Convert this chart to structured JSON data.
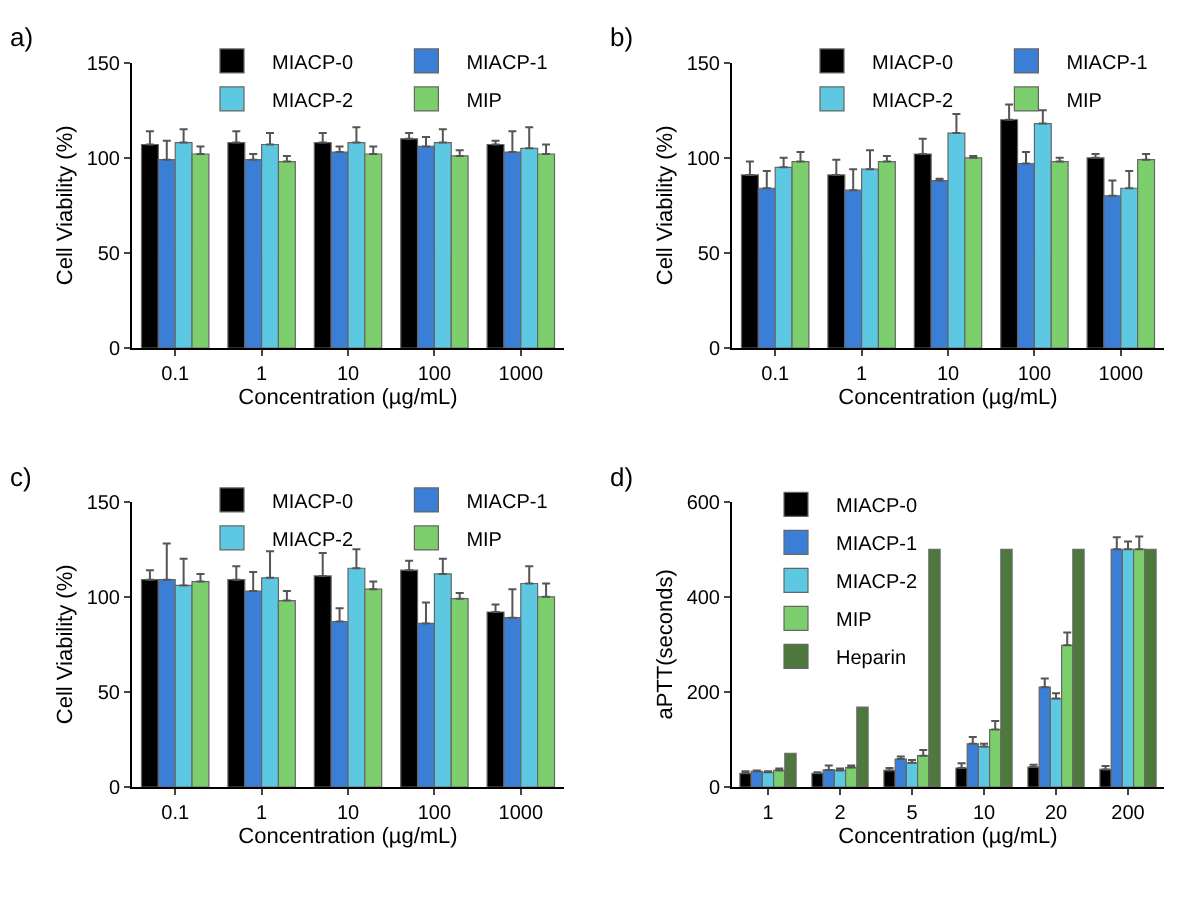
{
  "chart_data": [
    {
      "type": "bar",
      "title": "a)",
      "xlabel": "Concentration (µg/mL)",
      "ylabel": "Cell Viability (%)",
      "categories": [
        "0.1",
        "1",
        "10",
        "100",
        "1000"
      ],
      "ylim": [
        0,
        150
      ],
      "yticks": [
        0,
        50,
        100,
        150
      ],
      "grid": false,
      "legend": "top",
      "series": [
        {
          "name": "MIACP-0",
          "color": "#000000",
          "values": [
            107,
            108,
            108,
            110,
            107
          ],
          "errors": [
            [
              107,
              114
            ],
            [
              108,
              114
            ],
            [
              108,
              113
            ],
            [
              110,
              113
            ],
            [
              107,
              109
            ]
          ]
        },
        {
          "name": "MIACP-1",
          "color": "#3a7fd5",
          "values": [
            99,
            99,
            103,
            106,
            103
          ],
          "errors": [
            [
              99,
              109
            ],
            [
              99,
              102
            ],
            [
              103,
              106
            ],
            [
              106,
              111
            ],
            [
              103,
              114
            ]
          ]
        },
        {
          "name": "MIACP-2",
          "color": "#5cc8e2",
          "values": [
            108,
            107,
            108,
            108,
            105
          ],
          "errors": [
            [
              108,
              115
            ],
            [
              107,
              113
            ],
            [
              108,
              116
            ],
            [
              108,
              115
            ],
            [
              105,
              116
            ]
          ]
        },
        {
          "name": "MIP",
          "color": "#7ccf6c",
          "values": [
            102,
            98,
            102,
            101,
            102
          ],
          "errors": [
            [
              102,
              106
            ],
            [
              98,
              101
            ],
            [
              102,
              106
            ],
            [
              101,
              104
            ],
            [
              102,
              107
            ]
          ]
        }
      ]
    },
    {
      "type": "bar",
      "title": "b)",
      "xlabel": "Concentration (µg/mL)",
      "ylabel": "Cell Viability (%)",
      "categories": [
        "0.1",
        "1",
        "10",
        "100",
        "1000"
      ],
      "ylim": [
        0,
        150
      ],
      "yticks": [
        0,
        50,
        100,
        150
      ],
      "grid": false,
      "legend": "top",
      "series": [
        {
          "name": "MIACP-0",
          "color": "#000000",
          "values": [
            91,
            91,
            102,
            120,
            100
          ],
          "errors": [
            [
              91,
              98
            ],
            [
              91,
              99
            ],
            [
              102,
              110
            ],
            [
              120,
              128
            ],
            [
              100,
              102
            ]
          ]
        },
        {
          "name": "MIACP-1",
          "color": "#3a7fd5",
          "values": [
            84,
            83,
            88,
            97,
            80
          ],
          "errors": [
            [
              84,
              93
            ],
            [
              83,
              94
            ],
            [
              88,
              89
            ],
            [
              97,
              103
            ],
            [
              80,
              88
            ]
          ]
        },
        {
          "name": "MIACP-2",
          "color": "#5cc8e2",
          "values": [
            95,
            94,
            113,
            118,
            84
          ],
          "errors": [
            [
              95,
              100
            ],
            [
              94,
              104
            ],
            [
              113,
              123
            ],
            [
              118,
              125
            ],
            [
              84,
              93
            ]
          ]
        },
        {
          "name": "MIP",
          "color": "#7ccf6c",
          "values": [
            98,
            98,
            100,
            98,
            99
          ],
          "errors": [
            [
              98,
              103
            ],
            [
              98,
              101
            ],
            [
              100,
              101
            ],
            [
              98,
              100
            ],
            [
              99,
              102
            ]
          ]
        }
      ]
    },
    {
      "type": "bar",
      "title": "c)",
      "xlabel": "Concentration (µg/mL)",
      "ylabel": "Cell Viability (%)",
      "categories": [
        "0.1",
        "1",
        "10",
        "100",
        "1000"
      ],
      "ylim": [
        0,
        150
      ],
      "yticks": [
        0,
        50,
        100,
        150
      ],
      "grid": false,
      "legend": "top",
      "series": [
        {
          "name": "MIACP-0",
          "color": "#000000",
          "values": [
            109,
            109,
            111,
            114,
            92
          ],
          "errors": [
            [
              109,
              114
            ],
            [
              109,
              116
            ],
            [
              111,
              123
            ],
            [
              114,
              119
            ],
            [
              92,
              96
            ]
          ]
        },
        {
          "name": "MIACP-1",
          "color": "#3a7fd5",
          "values": [
            109,
            103,
            87,
            86,
            89
          ],
          "errors": [
            [
              109,
              128
            ],
            [
              103,
              113
            ],
            [
              87,
              94
            ],
            [
              86,
              97
            ],
            [
              89,
              104
            ]
          ]
        },
        {
          "name": "MIACP-2",
          "color": "#5cc8e2",
          "values": [
            106,
            110,
            115,
            112,
            107
          ],
          "errors": [
            [
              106,
              120
            ],
            [
              110,
              124
            ],
            [
              115,
              125
            ],
            [
              112,
              120
            ],
            [
              107,
              116
            ]
          ]
        },
        {
          "name": "MIP",
          "color": "#7ccf6c",
          "values": [
            108,
            98,
            104,
            99,
            100
          ],
          "errors": [
            [
              108,
              112
            ],
            [
              98,
              103
            ],
            [
              104,
              108
            ],
            [
              99,
              102
            ],
            [
              100,
              107
            ]
          ]
        }
      ]
    },
    {
      "type": "bar",
      "title": "d)",
      "xlabel": "Concentration (µg/mL)",
      "ylabel": "aPTT(seconds)",
      "categories": [
        "1",
        "2",
        "5",
        "10",
        "20",
        "200"
      ],
      "ylim": [
        0,
        600
      ],
      "yticks": [
        0,
        200,
        400,
        600
      ],
      "legend": "top left",
      "series": [
        {
          "name": "MIACP-0",
          "color": "#000000",
          "values": [
            29,
            29,
            35,
            40,
            42,
            37
          ],
          "errors": [
            [
              29,
              33
            ],
            [
              29,
              31
            ],
            [
              35,
              40
            ],
            [
              40,
              50
            ],
            [
              42,
              47
            ],
            [
              37,
              44
            ]
          ]
        },
        {
          "name": "MIACP-1",
          "color": "#3a7fd5",
          "values": [
            33,
            36,
            59,
            91,
            210,
            500
          ],
          "errors": [
            [
              33,
              35
            ],
            [
              36,
              45
            ],
            [
              59,
              64
            ],
            [
              91,
              105
            ],
            [
              210,
              228
            ],
            [
              500,
              525
            ]
          ]
        },
        {
          "name": "MIACP-2",
          "color": "#5cc8e2",
          "values": [
            31,
            35,
            51,
            85,
            186,
            500
          ],
          "errors": [
            [
              31,
              33
            ],
            [
              35,
              39
            ],
            [
              51,
              57
            ],
            [
              85,
              91
            ],
            [
              186,
              197
            ],
            [
              500,
              516
            ]
          ]
        },
        {
          "name": "MIP",
          "color": "#7ccf6c",
          "values": [
            35,
            41,
            66,
            121,
            298,
            500
          ],
          "errors": [
            [
              35,
              39
            ],
            [
              41,
              45
            ],
            [
              66,
              78
            ],
            [
              121,
              139
            ],
            [
              298,
              325
            ],
            [
              500,
              527
            ]
          ]
        },
        {
          "name": "Heparin",
          "color": "#4d7a3c",
          "values": [
            71,
            168,
            500,
            500,
            500,
            500
          ],
          "errors": [
            null,
            null,
            null,
            null,
            null,
            null
          ]
        }
      ]
    }
  ]
}
